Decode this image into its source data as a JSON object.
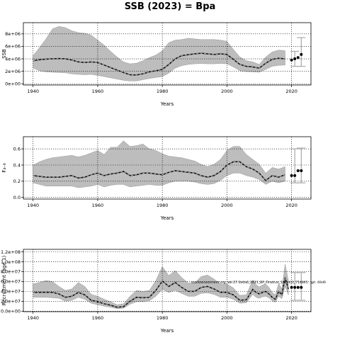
{
  "figure_title": "SSB (2023) = Bpa",
  "chart_data": [
    {
      "type": "line",
      "ylabel": "SSB",
      "xlabel": "Years",
      "xlim": [
        1937,
        2026
      ],
      "ylim": [
        -200000,
        9800000
      ],
      "xticks": [
        1940,
        1960,
        1980,
        2000,
        2020
      ],
      "xtick_labels": [
        "1940",
        "1960",
        "1980",
        "2000",
        "2020"
      ],
      "yticks": [
        0,
        2000000,
        4000000,
        6000000,
        8000000
      ],
      "ytick_labels": [
        "0e+00",
        "2e+06",
        "4e+06",
        "6e+06",
        "8e+06"
      ],
      "grid": "dotted",
      "series": [
        {
          "role": "median",
          "x": [
            1940,
            1942,
            1944,
            1946,
            1948,
            1950,
            1952,
            1954,
            1956,
            1958,
            1960,
            1962,
            1964,
            1966,
            1968,
            1970,
            1972,
            1974,
            1976,
            1978,
            1980,
            1982,
            1984,
            1986,
            1988,
            1990,
            1992,
            1994,
            1996,
            1998,
            2000,
            2002,
            2004,
            2006,
            2008,
            2010,
            2012,
            2014,
            2016,
            2018
          ],
          "y": [
            3700000,
            3850000,
            3950000,
            4000000,
            4050000,
            4000000,
            3800000,
            3500000,
            3400000,
            3500000,
            3400000,
            3000000,
            2600000,
            2200000,
            1800000,
            1450000,
            1400000,
            1600000,
            1900000,
            2100000,
            2300000,
            3100000,
            4000000,
            4500000,
            4650000,
            4800000,
            4900000,
            4800000,
            4700000,
            4800000,
            4700000,
            3900000,
            3100000,
            2800000,
            2700000,
            2500000,
            3300000,
            3900000,
            4100000,
            4000000
          ]
        },
        {
          "role": "lower",
          "x": [
            1940,
            1942,
            1944,
            1946,
            1948,
            1950,
            1952,
            1954,
            1956,
            1958,
            1960,
            1962,
            1964,
            1966,
            1968,
            1970,
            1972,
            1974,
            1976,
            1978,
            1980,
            1982,
            1984,
            1986,
            1988,
            1990,
            1992,
            1994,
            1996,
            1998,
            2000,
            2002,
            2004,
            2006,
            2008,
            2010,
            2012,
            2014,
            2016,
            2018
          ],
          "y": [
            2500000,
            2100000,
            1900000,
            1850000,
            1800000,
            1750000,
            1600000,
            1500000,
            1450000,
            1500000,
            1350000,
            1150000,
            950000,
            750000,
            550000,
            450000,
            450000,
            650000,
            850000,
            1000000,
            1150000,
            1700000,
            2500000,
            2900000,
            3100000,
            3200000,
            3250000,
            3200000,
            3200000,
            3250000,
            3200000,
            2700000,
            2100000,
            1950000,
            1900000,
            1850000,
            2300000,
            2800000,
            2950000,
            3000000
          ]
        },
        {
          "role": "upper",
          "x": [
            1940,
            1942,
            1944,
            1946,
            1948,
            1950,
            1952,
            1954,
            1956,
            1958,
            1960,
            1962,
            1964,
            1966,
            1968,
            1970,
            1972,
            1974,
            1976,
            1978,
            1980,
            1982,
            1984,
            1986,
            1988,
            1990,
            1992,
            1994,
            1996,
            1998,
            2000,
            2002,
            2004,
            2006,
            2008,
            2010,
            2012,
            2014,
            2016,
            2018
          ],
          "y": [
            4500000,
            5800000,
            7200000,
            8800000,
            9200000,
            9000000,
            8500000,
            8200000,
            8100000,
            7800000,
            7000000,
            6200000,
            5200000,
            4300000,
            3500000,
            3200000,
            3300000,
            3700000,
            4200000,
            4600000,
            5300000,
            6600000,
            7000000,
            7100000,
            7300000,
            7200000,
            7100000,
            7100000,
            7100000,
            7000000,
            6800000,
            5500000,
            4300000,
            3700000,
            3500000,
            3100000,
            4300000,
            5100000,
            5400000,
            5300000
          ]
        },
        {
          "role": "forecast_points",
          "x": [
            2020,
            2021,
            2022,
            2023
          ],
          "y": [
            3800000,
            4000000,
            4200000,
            4700000
          ]
        }
      ],
      "reference_intervals": [
        {
          "x": 2021,
          "low": 2800000,
          "high": 5200000
        },
        {
          "x": 2023,
          "low": 2800000,
          "high": 7400000
        }
      ]
    },
    {
      "type": "line",
      "ylabel": "F₄₋₈",
      "xlabel": "Years",
      "xlim": [
        1937,
        2026
      ],
      "ylim": [
        -0.02,
        0.75
      ],
      "xticks": [
        1940,
        1960,
        1980,
        2000,
        2020
      ],
      "xtick_labels": [
        "1940",
        "1960",
        "1980",
        "2000",
        "2020"
      ],
      "yticks": [
        0.0,
        0.2,
        0.4,
        0.6
      ],
      "ytick_labels": [
        "0.0",
        "0.2",
        "0.4",
        "0.6"
      ],
      "grid": "dotted",
      "series": [
        {
          "role": "median",
          "x": [
            1940,
            1942,
            1944,
            1946,
            1948,
            1950,
            1952,
            1954,
            1956,
            1958,
            1960,
            1962,
            1964,
            1966,
            1968,
            1970,
            1972,
            1974,
            1976,
            1978,
            1980,
            1982,
            1984,
            1986,
            1988,
            1990,
            1992,
            1994,
            1996,
            1998,
            2000,
            2002,
            2004,
            2006,
            2008,
            2010,
            2012,
            2014,
            2016,
            2018
          ],
          "y": [
            0.27,
            0.26,
            0.25,
            0.25,
            0.25,
            0.26,
            0.27,
            0.24,
            0.25,
            0.28,
            0.3,
            0.27,
            0.29,
            0.3,
            0.32,
            0.27,
            0.28,
            0.3,
            0.3,
            0.29,
            0.28,
            0.31,
            0.33,
            0.32,
            0.31,
            0.3,
            0.27,
            0.25,
            0.27,
            0.32,
            0.4,
            0.44,
            0.44,
            0.38,
            0.35,
            0.3,
            0.21,
            0.27,
            0.25,
            0.28
          ]
        },
        {
          "role": "lower",
          "x": [
            1940,
            1942,
            1944,
            1946,
            1948,
            1950,
            1952,
            1954,
            1956,
            1958,
            1960,
            1962,
            1964,
            1966,
            1968,
            1970,
            1972,
            1974,
            1976,
            1978,
            1980,
            1982,
            1984,
            1986,
            1988,
            1990,
            1992,
            1994,
            1996,
            1998,
            2000,
            2002,
            2004,
            2006,
            2008,
            2010,
            2012,
            2014,
            2016,
            2018
          ],
          "y": [
            0.18,
            0.16,
            0.14,
            0.14,
            0.14,
            0.14,
            0.14,
            0.12,
            0.13,
            0.14,
            0.16,
            0.13,
            0.15,
            0.16,
            0.16,
            0.13,
            0.14,
            0.15,
            0.16,
            0.15,
            0.15,
            0.18,
            0.2,
            0.2,
            0.2,
            0.19,
            0.17,
            0.16,
            0.17,
            0.21,
            0.27,
            0.3,
            0.3,
            0.27,
            0.25,
            0.22,
            0.16,
            0.2,
            0.18,
            0.2
          ]
        },
        {
          "role": "upper",
          "x": [
            1940,
            1942,
            1944,
            1946,
            1948,
            1950,
            1952,
            1954,
            1956,
            1958,
            1960,
            1962,
            1964,
            1966,
            1968,
            1970,
            1972,
            1974,
            1976,
            1978,
            1980,
            1982,
            1984,
            1986,
            1988,
            1990,
            1992,
            1994,
            1996,
            1998,
            2000,
            2002,
            2004,
            2006,
            2008,
            2010,
            2012,
            2014,
            2016,
            2018
          ],
          "y": [
            0.4,
            0.44,
            0.47,
            0.49,
            0.5,
            0.51,
            0.52,
            0.5,
            0.52,
            0.55,
            0.58,
            0.53,
            0.62,
            0.62,
            0.7,
            0.63,
            0.64,
            0.66,
            0.6,
            0.58,
            0.54,
            0.51,
            0.5,
            0.49,
            0.47,
            0.45,
            0.41,
            0.38,
            0.41,
            0.47,
            0.58,
            0.63,
            0.63,
            0.53,
            0.47,
            0.41,
            0.3,
            0.37,
            0.35,
            0.38
          ]
        },
        {
          "role": "forecast_points",
          "x": [
            2020,
            2021,
            2022,
            2023
          ],
          "y": [
            0.27,
            0.27,
            0.33,
            0.33
          ]
        }
      ],
      "reference_intervals": [
        {
          "x": 2021,
          "low": 0.18,
          "high": 0.6
        },
        {
          "x": 2023,
          "low": 0.18,
          "high": 0.61
        }
      ]
    },
    {
      "type": "line",
      "ylabel": "Recruitment (age 1)",
      "xlabel": "Years",
      "xlim": [
        1937,
        2026
      ],
      "ylim": [
        -1000000,
        125000000
      ],
      "xticks": [
        1940,
        1960,
        1980,
        2000,
        2020
      ],
      "xtick_labels": [
        "1940",
        "1960",
        "1980",
        "2000",
        "2020"
      ],
      "yticks": [
        0,
        20000000,
        40000000,
        60000000,
        80000000,
        100000000,
        120000000
      ],
      "ytick_labels": [
        "0.0e+00",
        "2.0e+07",
        "4.0e+07",
        "6.0e+07",
        "8.0e+07",
        "1.0e+08",
        "1.2e+08"
      ],
      "grid": "dotted",
      "annotation": "stockassessment.org, wk.27.3a4a6_2021_BP_Finalrun_1/ann01_714841 , git: 69d9",
      "series": [
        {
          "role": "median",
          "x": [
            1940,
            1942,
            1944,
            1946,
            1948,
            1950,
            1952,
            1954,
            1956,
            1958,
            1960,
            1962,
            1964,
            1966,
            1968,
            1970,
            1972,
            1974,
            1976,
            1978,
            1980,
            1982,
            1984,
            1986,
            1988,
            1990,
            1992,
            1994,
            1996,
            1998,
            2000,
            2002,
            2004,
            2006,
            2008,
            2009,
            2010,
            2011,
            2012,
            2013,
            2014,
            2015,
            2016,
            2017,
            2018,
            2019
          ],
          "y": [
            38000000,
            38000000,
            38000000,
            38000000,
            35000000,
            28000000,
            30000000,
            38000000,
            33000000,
            22000000,
            19000000,
            15000000,
            12000000,
            8000000,
            9000000,
            20000000,
            28000000,
            27000000,
            28000000,
            42000000,
            61000000,
            50000000,
            58000000,
            48000000,
            40000000,
            40000000,
            48000000,
            50000000,
            45000000,
            38000000,
            38000000,
            33000000,
            22000000,
            23000000,
            44000000,
            38000000,
            35000000,
            38000000,
            40000000,
            35000000,
            28000000,
            24000000,
            40000000,
            33000000,
            68000000,
            45000000
          ]
        },
        {
          "role": "lower",
          "x": [
            1940,
            1942,
            1944,
            1946,
            1948,
            1950,
            1952,
            1954,
            1956,
            1958,
            1960,
            1962,
            1964,
            1966,
            1968,
            1970,
            1972,
            1974,
            1976,
            1978,
            1980,
            1982,
            1984,
            1986,
            1988,
            1990,
            1992,
            1994,
            1996,
            1998,
            2000,
            2002,
            2004,
            2006,
            2008,
            2009,
            2010,
            2011,
            2012,
            2013,
            2014,
            2015,
            2016,
            2017,
            2018,
            2019
          ],
          "y": [
            28000000,
            28000000,
            28000000,
            27000000,
            26000000,
            20000000,
            22000000,
            28000000,
            24000000,
            16000000,
            13000000,
            10000000,
            8000000,
            5000000,
            6000000,
            14000000,
            19000000,
            19000000,
            21000000,
            30000000,
            44000000,
            38000000,
            42000000,
            36000000,
            30000000,
            30000000,
            36000000,
            37000000,
            34000000,
            28000000,
            28000000,
            24000000,
            16000000,
            17000000,
            34000000,
            28000000,
            26000000,
            29000000,
            30000000,
            27000000,
            21000000,
            18000000,
            30000000,
            25000000,
            50000000,
            33000000
          ]
        },
        {
          "role": "upper",
          "x": [
            1940,
            1942,
            1944,
            1946,
            1948,
            1950,
            1952,
            1954,
            1956,
            1958,
            1960,
            1962,
            1964,
            1966,
            1968,
            1970,
            1972,
            1974,
            1976,
            1978,
            1980,
            1982,
            1984,
            1986,
            1988,
            1990,
            1992,
            1994,
            1996,
            1998,
            2000,
            2002,
            2004,
            2006,
            2008,
            2009,
            2010,
            2011,
            2012,
            2013,
            2014,
            2015,
            2016,
            2017,
            2018,
            2019
          ],
          "y": [
            55000000,
            58000000,
            62000000,
            60000000,
            50000000,
            42000000,
            45000000,
            58000000,
            50000000,
            34000000,
            30000000,
            24000000,
            19000000,
            13000000,
            15000000,
            30000000,
            42000000,
            40000000,
            42000000,
            62000000,
            90000000,
            72000000,
            82000000,
            68000000,
            57000000,
            57000000,
            70000000,
            73000000,
            65000000,
            55000000,
            55000000,
            47000000,
            32000000,
            33000000,
            63000000,
            54000000,
            49000000,
            53000000,
            55000000,
            48000000,
            38000000,
            33000000,
            56000000,
            45000000,
            95000000,
            62000000
          ]
        },
        {
          "role": "forecast_points",
          "x": [
            2020,
            2021,
            2022,
            2023
          ],
          "y": [
            48000000,
            48000000,
            48000000,
            48000000
          ]
        }
      ],
      "reference_intervals": [
        {
          "x": 2021,
          "low": 22000000,
          "high": 78000000
        },
        {
          "x": 2023,
          "low": 22000000,
          "high": 78000000
        }
      ]
    }
  ]
}
